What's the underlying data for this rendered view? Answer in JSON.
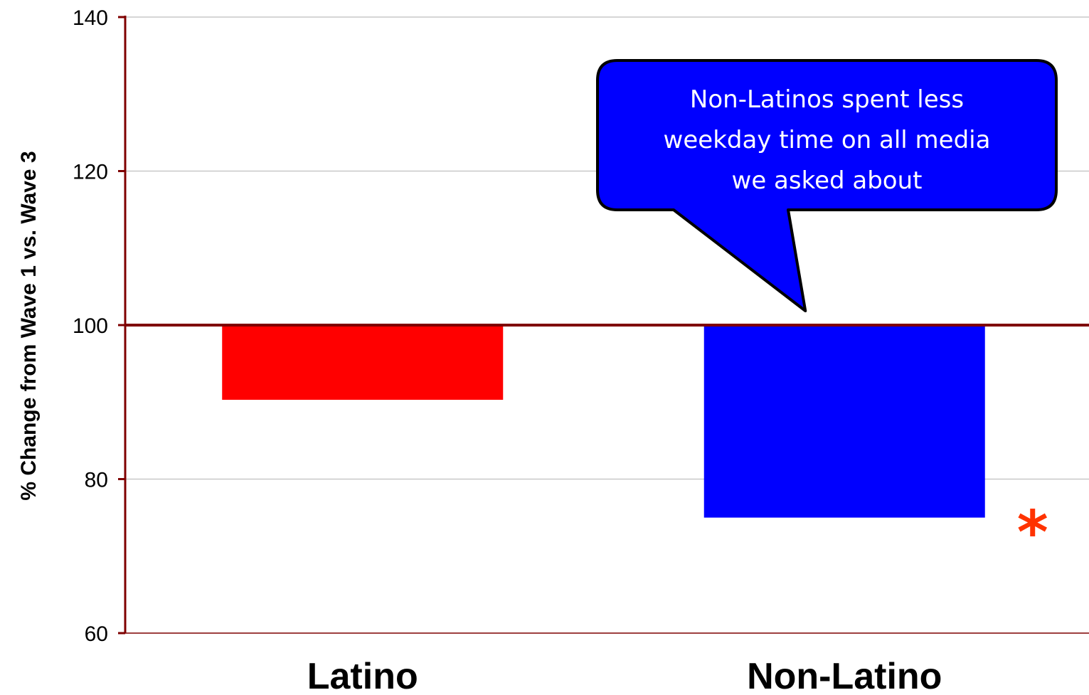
{
  "chart_data": {
    "type": "bar",
    "categories": [
      "Latino",
      "Non-Latino"
    ],
    "values": [
      90.3,
      75
    ],
    "bar_colors": [
      "#ff0000",
      "#0000ff"
    ],
    "baseline": 100,
    "ylabel": "% Change from Wave 1 vs. Wave 3",
    "ylim": [
      60,
      140
    ],
    "yticks": [
      60,
      80,
      100,
      120,
      140
    ],
    "grid": true,
    "axis_color": "#7f0000",
    "annotations": [
      {
        "text_lines": [
          "Non-Latinos spent less",
          "weekday time on all media",
          "we asked about"
        ],
        "target_category": "Non-Latino",
        "fill": "#0000ff"
      },
      {
        "text": "*",
        "target_category": "Non-Latino",
        "color": "#ff3300"
      }
    ]
  }
}
